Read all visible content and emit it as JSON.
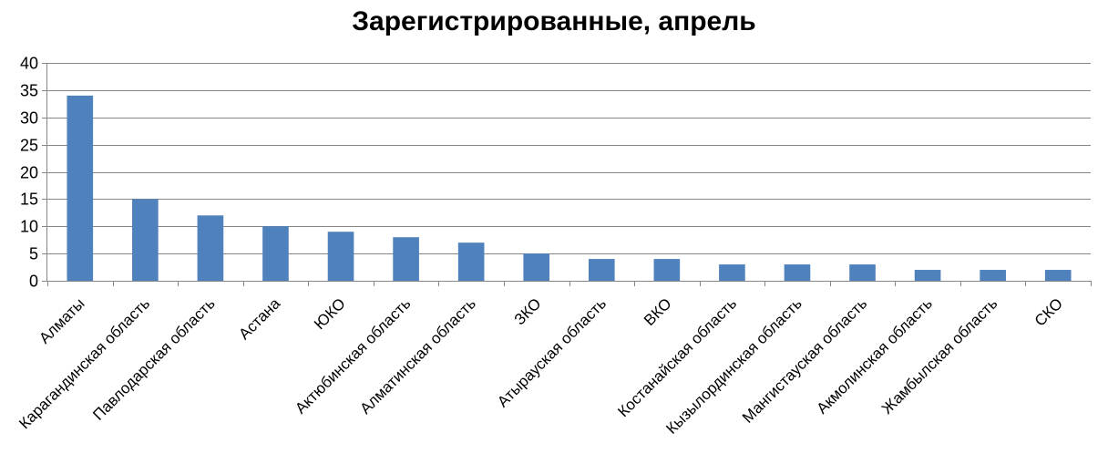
{
  "chart_data": {
    "type": "bar",
    "title": "Зарегистрированные, апрель",
    "xlabel": "",
    "ylabel": "",
    "ylim": [
      0,
      40
    ],
    "yticks": [
      0,
      5,
      10,
      15,
      20,
      25,
      30,
      35,
      40
    ],
    "grid": true,
    "legend": "none",
    "bar_color": "#4F81BD",
    "categories": [
      "Алматы",
      "Карагандинская  область",
      "Павлодарская область",
      "Астана",
      "ЮКО",
      "Актюбинская  область",
      "Алматинская область",
      "ЗКО",
      "Атырауская область",
      "ВКО",
      "Костанайская  область",
      "Кызылординская  область",
      "Мангистауская область",
      "Акмолинская  область",
      "Жамбылская область",
      "СКО"
    ],
    "values": [
      34,
      15,
      12,
      10,
      9,
      8,
      7,
      5,
      4,
      4,
      3,
      3,
      3,
      2,
      2,
      2
    ]
  }
}
